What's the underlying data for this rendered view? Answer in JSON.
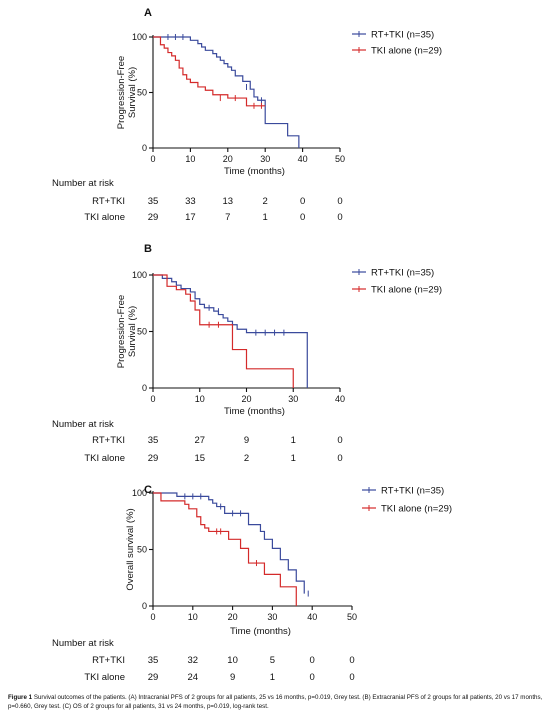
{
  "colors": {
    "rt_tki": "#3a4a9c",
    "tki": "#d42a2a",
    "axis": "#111111"
  },
  "risk_header": "Number at risk",
  "caption": {
    "label": "Figure 1",
    "text": "Survival outcomes of the patients. (A) Intracranial PFS of 2 groups for all patients, 25 vs 16 months, p=0.019, Grey test. (B) Extracranial PFS of 2 groups for all patients, 20 vs 17 months, p=0.660, Grey test. (C) OS of 2 groups for all patients, 31 vs 24 months, p=0.019, log-rank test."
  },
  "chart_data": [
    {
      "type": "line",
      "panel": "A",
      "ylabel": "Progression-Free Survival (%)",
      "xlabel": "Time (months)",
      "xlim": [
        0,
        50
      ],
      "ylim": [
        0,
        100
      ],
      "xticks": [
        0,
        10,
        20,
        30,
        40,
        50
      ],
      "yticks": [
        0,
        50,
        100
      ],
      "legend_position": "top-right",
      "series": [
        {
          "name": "RT+TKI (n=35)",
          "color": "#3a4a9c",
          "steps": [
            [
              0,
              100
            ],
            [
              10,
              97
            ],
            [
              12,
              94
            ],
            [
              13,
              91
            ],
            [
              14,
              88
            ],
            [
              16,
              85
            ],
            [
              17,
              82
            ],
            [
              18,
              79
            ],
            [
              19,
              76
            ],
            [
              20,
              73
            ],
            [
              21,
              70
            ],
            [
              22,
              65
            ],
            [
              24,
              60
            ],
            [
              26,
              53
            ],
            [
              27,
              46
            ],
            [
              28,
              43
            ],
            [
              30,
              22
            ],
            [
              36,
              11
            ],
            [
              39,
              0
            ]
          ],
          "censored": [
            [
              4,
              100
            ],
            [
              6,
              100
            ],
            [
              8,
              100
            ],
            [
              25,
              55
            ],
            [
              29,
              43
            ]
          ]
        },
        {
          "name": "TKI alone (n=29)",
          "color": "#d42a2a",
          "steps": [
            [
              0,
              100
            ],
            [
              2,
              93
            ],
            [
              3,
              90
            ],
            [
              4,
              86
            ],
            [
              5,
              83
            ],
            [
              6,
              79
            ],
            [
              7,
              72
            ],
            [
              8,
              66
            ],
            [
              9,
              62
            ],
            [
              10,
              59
            ],
            [
              12,
              55
            ],
            [
              14,
              52
            ],
            [
              16,
              48
            ],
            [
              20,
              45
            ],
            [
              25,
              38
            ],
            [
              30,
              38
            ]
          ],
          "censored": [
            [
              18,
              45
            ],
            [
              22,
              45
            ],
            [
              27,
              38
            ],
            [
              29,
              38
            ]
          ]
        }
      ],
      "risk_table": {
        "times": [
          0,
          10,
          20,
          30,
          40,
          50
        ],
        "rows": [
          {
            "label": "RT+TKI",
            "values": [
              35,
              33,
              13,
              2,
              0,
              0
            ]
          },
          {
            "label": "TKI alone",
            "values": [
              29,
              17,
              7,
              1,
              0,
              0
            ]
          }
        ]
      }
    },
    {
      "type": "line",
      "panel": "B",
      "ylabel": "Progression-Free Survival (%)",
      "xlabel": "Time (months)",
      "xlim": [
        0,
        40
      ],
      "ylim": [
        0,
        100
      ],
      "xticks": [
        0,
        10,
        20,
        30,
        40
      ],
      "yticks": [
        0,
        50,
        100
      ],
      "legend_position": "top-right",
      "series": [
        {
          "name": "RT+TKI (n=35)",
          "color": "#3a4a9c",
          "steps": [
            [
              0,
              100
            ],
            [
              2,
              97
            ],
            [
              4,
              94
            ],
            [
              5,
              91
            ],
            [
              6,
              88
            ],
            [
              8,
              85
            ],
            [
              9,
              79
            ],
            [
              10,
              74
            ],
            [
              11,
              71
            ],
            [
              13,
              68
            ],
            [
              14,
              65
            ],
            [
              15,
              62
            ],
            [
              16,
              59
            ],
            [
              17,
              56
            ],
            [
              18,
              52
            ],
            [
              20,
              49
            ],
            [
              33,
              0
            ]
          ],
          "censored": [
            [
              3,
              97
            ],
            [
              12,
              71
            ],
            [
              14,
              68
            ],
            [
              22,
              49
            ],
            [
              24,
              49
            ],
            [
              26,
              49
            ],
            [
              28,
              49
            ]
          ]
        },
        {
          "name": "TKI alone (n=29)",
          "color": "#d42a2a",
          "steps": [
            [
              0,
              100
            ],
            [
              3,
              90
            ],
            [
              5,
              87
            ],
            [
              7,
              83
            ],
            [
              8,
              77
            ],
            [
              9,
              69
            ],
            [
              10,
              56
            ],
            [
              17,
              34
            ],
            [
              20,
              17
            ],
            [
              30,
              0
            ]
          ],
          "censored": [
            [
              12,
              56
            ],
            [
              14,
              56
            ]
          ]
        }
      ],
      "risk_table": {
        "times": [
          0,
          10,
          20,
          30,
          40
        ],
        "rows": [
          {
            "label": "RT+TKI",
            "values": [
              35,
              27,
              9,
              1,
              0
            ]
          },
          {
            "label": "TKI alone",
            "values": [
              29,
              15,
              2,
              1,
              0
            ]
          }
        ]
      }
    },
    {
      "type": "line",
      "panel": "C",
      "ylabel": "Overall survival (%)",
      "xlabel": "Time (months)",
      "xlim": [
        0,
        50
      ],
      "ylim": [
        0,
        100
      ],
      "xticks": [
        0,
        10,
        20,
        30,
        40,
        50
      ],
      "yticks": [
        0,
        50,
        100
      ],
      "legend_position": "top-right",
      "series": [
        {
          "name": "RT+TKI (n=35)",
          "color": "#3a4a9c",
          "steps": [
            [
              0,
              100
            ],
            [
              6,
              97
            ],
            [
              14,
              94
            ],
            [
              15,
              91
            ],
            [
              16,
              88
            ],
            [
              18,
              82
            ],
            [
              24,
              72
            ],
            [
              27,
              66
            ],
            [
              28,
              59
            ],
            [
              30,
              51
            ],
            [
              32,
              41
            ],
            [
              34,
              32
            ],
            [
              36,
              22
            ],
            [
              38,
              11
            ]
          ],
          "censored": [
            [
              8,
              97
            ],
            [
              10,
              97
            ],
            [
              12,
              97
            ],
            [
              17,
              88
            ],
            [
              20,
              82
            ],
            [
              22,
              82
            ],
            [
              39,
              11
            ]
          ]
        },
        {
          "name": "TKI alone (n=29)",
          "color": "#d42a2a",
          "steps": [
            [
              0,
              100
            ],
            [
              2,
              93
            ],
            [
              8,
              90
            ],
            [
              9,
              86
            ],
            [
              11,
              79
            ],
            [
              12,
              72
            ],
            [
              13,
              69
            ],
            [
              14,
              66
            ],
            [
              19,
              59
            ],
            [
              22,
              51
            ],
            [
              24,
              38
            ],
            [
              28,
              28
            ],
            [
              32,
              17
            ],
            [
              36,
              0
            ]
          ],
          "censored": [
            [
              16,
              66
            ],
            [
              17,
              66
            ],
            [
              26,
              38
            ]
          ]
        }
      ],
      "risk_table": {
        "times": [
          0,
          10,
          20,
          30,
          40,
          50
        ],
        "rows": [
          {
            "label": "RT+TKI",
            "values": [
              35,
              32,
              10,
              5,
              0,
              0
            ]
          },
          {
            "label": "TKI alone",
            "values": [
              29,
              24,
              9,
              1,
              0,
              0
            ]
          }
        ]
      }
    }
  ]
}
